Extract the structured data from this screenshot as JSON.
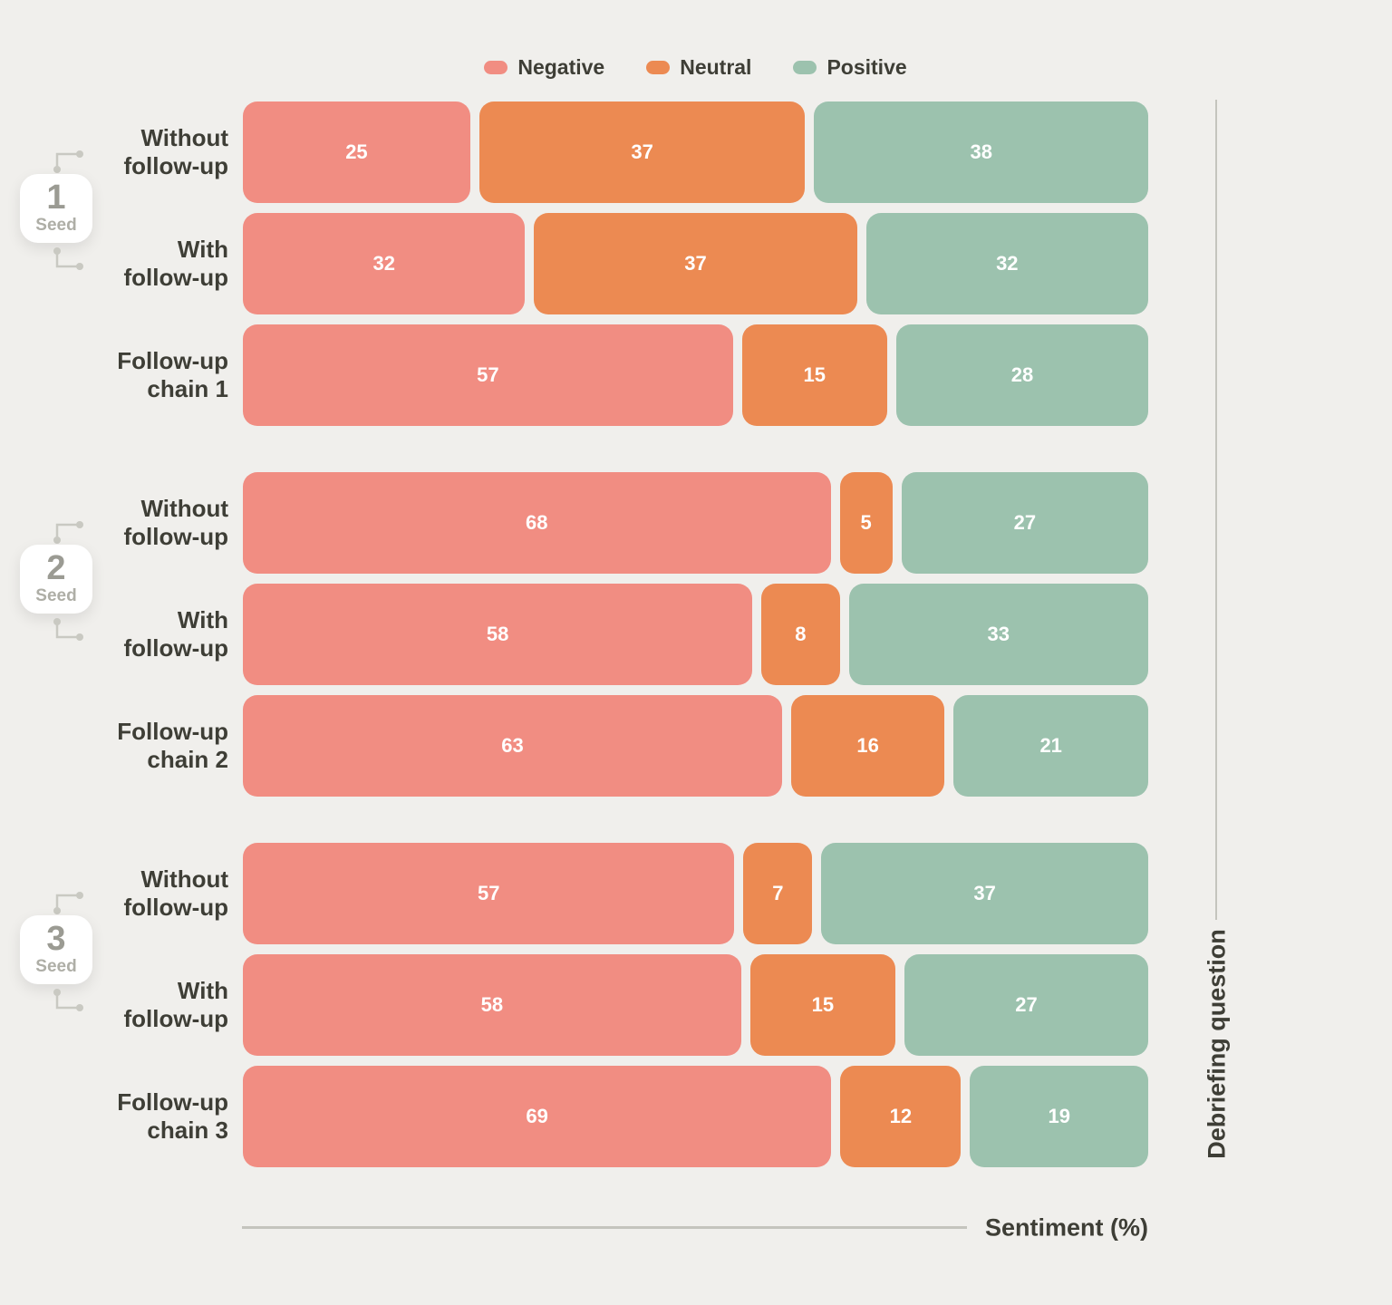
{
  "colors": {
    "negative": "#f18d82",
    "neutral": "#ec8a52",
    "positive": "#9cc2ae",
    "background": "#f0efec",
    "ink": "#3e3e36",
    "line": "#c4c4bd",
    "connector": "#c9c9c2",
    "seed_number": "#9b9b93"
  },
  "legend": [
    {
      "label": "Negative",
      "key": "negative"
    },
    {
      "label": "Neutral",
      "key": "neutral"
    },
    {
      "label": "Positive",
      "key": "positive"
    }
  ],
  "axes": {
    "x_label": "Sentiment (%)",
    "y_label": "Debriefing question"
  },
  "chart_data": {
    "type": "bar",
    "orientation": "horizontal",
    "stacked": true,
    "normalized_to_100": true,
    "title": "",
    "xlabel": "Sentiment (%)",
    "ylabel": "Debriefing question",
    "xlim": [
      0,
      100
    ],
    "grid": false,
    "legend_position": "top-center",
    "series_names": [
      "Negative",
      "Neutral",
      "Positive"
    ],
    "series_keys": [
      "negative",
      "neutral",
      "positive"
    ],
    "groups": [
      {
        "seed_number": "1",
        "seed_word": "Seed",
        "rows": [
          {
            "label": "Without follow-up",
            "label_lines": "Without\nfollow-up",
            "values": [
              25,
              37,
              38
            ]
          },
          {
            "label": "With follow-up",
            "label_lines": "With\nfollow-up",
            "values": [
              32,
              37,
              32
            ]
          },
          {
            "label": "Follow-up chain 1",
            "label_lines": "Follow-up\nchain 1",
            "values": [
              57,
              15,
              28
            ]
          }
        ]
      },
      {
        "seed_number": "2",
        "seed_word": "Seed",
        "rows": [
          {
            "label": "Without follow-up",
            "label_lines": "Without\nfollow-up",
            "values": [
              68,
              5,
              27
            ]
          },
          {
            "label": "With follow-up",
            "label_lines": "With\nfollow-up",
            "values": [
              58,
              8,
              33
            ]
          },
          {
            "label": "Follow-up chain 2",
            "label_lines": "Follow-up\nchain 2",
            "values": [
              63,
              16,
              21
            ]
          }
        ]
      },
      {
        "seed_number": "3",
        "seed_word": "Seed",
        "rows": [
          {
            "label": "Without follow-up",
            "label_lines": "Without\nfollow-up",
            "values": [
              57,
              7,
              37
            ]
          },
          {
            "label": "With follow-up",
            "label_lines": "With\nfollow-up",
            "values": [
              58,
              15,
              27
            ]
          },
          {
            "label": "Follow-up chain 3",
            "label_lines": "Follow-up\nchain 3",
            "values": [
              69,
              12,
              19
            ]
          }
        ]
      }
    ]
  }
}
